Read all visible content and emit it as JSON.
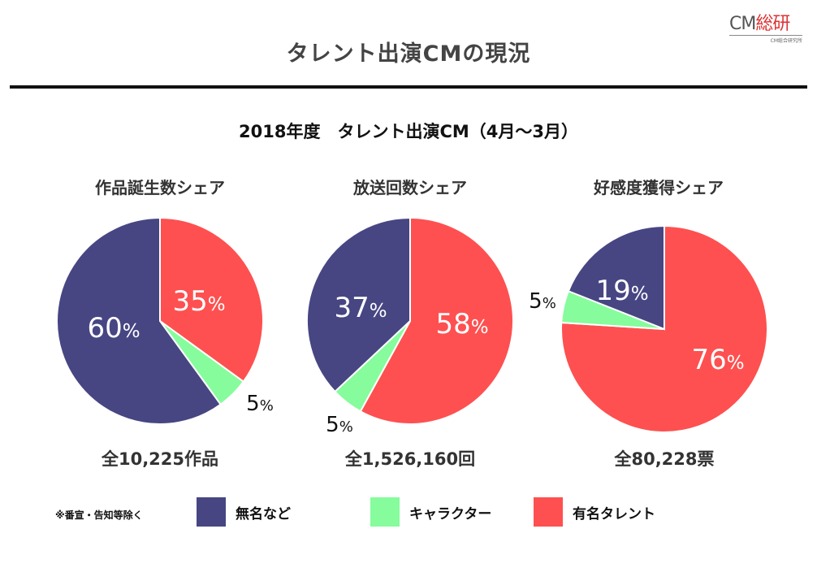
{
  "header": {
    "title": "タレント出演CMの現況",
    "logo_main": "CM",
    "logo_kanji": "総研",
    "logo_sub": "CM総合研究所"
  },
  "subtitle": "2018年度　タレント出演CM（4月〜3月）",
  "colors": {
    "unknown": "#474683",
    "character": "#86fc9c",
    "famous": "#fe5050"
  },
  "legend": {
    "note": "※番宣・告知等除く",
    "items": [
      {
        "key": "unknown",
        "label": "無名など"
      },
      {
        "key": "character",
        "label": "キャラクター"
      },
      {
        "key": "famous",
        "label": "有名タレント"
      }
    ]
  },
  "chart_data": [
    {
      "type": "pie",
      "title": "作品誕生数シェア",
      "total_label": "全10,225作品",
      "slices": [
        {
          "name": "有名タレント",
          "key": "famous",
          "value": 35,
          "label": "35%"
        },
        {
          "name": "キャラクター",
          "key": "character",
          "value": 5,
          "label": "5%"
        },
        {
          "name": "無名など",
          "key": "unknown",
          "value": 60,
          "label": "60%"
        }
      ]
    },
    {
      "type": "pie",
      "title": "放送回数シェア",
      "total_label": "全1,526,160回",
      "slices": [
        {
          "name": "有名タレント",
          "key": "famous",
          "value": 58,
          "label": "58%"
        },
        {
          "name": "キャラクター",
          "key": "character",
          "value": 5,
          "label": "5%"
        },
        {
          "name": "無名など",
          "key": "unknown",
          "value": 37,
          "label": "37%"
        }
      ]
    },
    {
      "type": "pie",
      "title": "好感度獲得シェア",
      "total_label": "全80,228票",
      "slices": [
        {
          "name": "有名タレント",
          "key": "famous",
          "value": 76,
          "label": "76%"
        },
        {
          "name": "キャラクター",
          "key": "character",
          "value": 5,
          "label": "5%"
        },
        {
          "name": "無名など",
          "key": "unknown",
          "value": 19,
          "label": "19%"
        }
      ]
    }
  ]
}
